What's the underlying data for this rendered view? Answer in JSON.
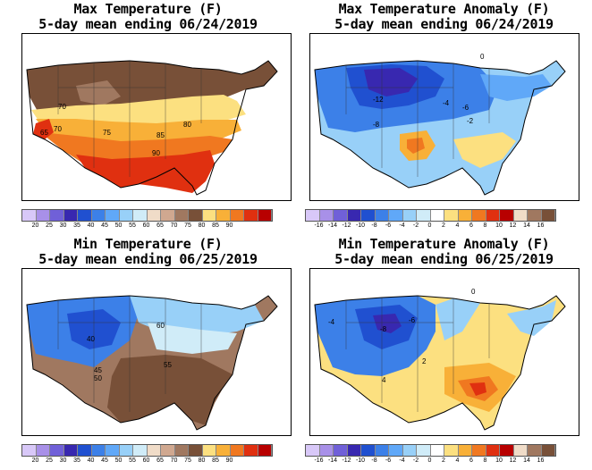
{
  "panels": [
    {
      "id": "max-temp",
      "title_line1": "Max Temperature (F)",
      "title_line2": "5-day mean ending 06/24/2019",
      "colorbar_ticks": [
        "20",
        "25",
        "30",
        "35",
        "40",
        "45",
        "50",
        "55",
        "60",
        "65",
        "70",
        "75",
        "80",
        "85",
        "90"
      ],
      "colorbar_colors": [
        "#d8c8f8",
        "#a890e8",
        "#7060d8",
        "#3828b0",
        "#2050d0",
        "#3c80e8",
        "#60a8f8",
        "#98d0f8",
        "#d0ecf8",
        "#f0dcc8",
        "#d0a890",
        "#a07860",
        "#785038",
        "#fce080",
        "#f8b038",
        "#f07820",
        "#e03010",
        "#b80000"
      ],
      "contour_labels": [
        "70",
        "75",
        "65",
        "70",
        "80",
        "85",
        "90"
      ],
      "colors": {
        "cold": "#785038",
        "mid": "#a07860",
        "warm1": "#fce080",
        "warm2": "#f8b038",
        "hot1": "#f07820",
        "hot2": "#e03010",
        "hot3": "#c81000"
      }
    },
    {
      "id": "max-anom",
      "title_line1": "Max Temperature Anomaly (F)",
      "title_line2": "5-day mean ending 06/24/2019",
      "colorbar_ticks": [
        "-16",
        "-14",
        "-12",
        "-10",
        "-8",
        "-6",
        "-4",
        "-2",
        "0",
        "2",
        "4",
        "6",
        "8",
        "10",
        "12",
        "14",
        "16"
      ],
      "colorbar_colors": [
        "#d8c8f8",
        "#a890e8",
        "#7060d8",
        "#3828b0",
        "#2050d0",
        "#3c80e8",
        "#60a8f8",
        "#98d0f8",
        "#d0ecf8",
        "#ffffff",
        "#fce080",
        "#f8b038",
        "#f07820",
        "#e03010",
        "#b80000",
        "#f0dcc8",
        "#a07860",
        "#785038"
      ],
      "contour_labels": [
        "-12",
        "-8",
        "-4",
        "-6",
        "-2",
        "0"
      ]
    },
    {
      "id": "min-temp",
      "title_line1": "Min Temperature (F)",
      "title_line2": "5-day mean ending 06/25/2019",
      "colorbar_ticks": [
        "20",
        "25",
        "30",
        "35",
        "40",
        "45",
        "50",
        "55",
        "60",
        "65",
        "70",
        "75",
        "80",
        "85",
        "90"
      ],
      "colorbar_colors": [
        "#d8c8f8",
        "#a890e8",
        "#7060d8",
        "#3828b0",
        "#2050d0",
        "#3c80e8",
        "#60a8f8",
        "#98d0f8",
        "#d0ecf8",
        "#f0dcc8",
        "#d0a890",
        "#a07860",
        "#785038",
        "#fce080",
        "#f8b038",
        "#f07820",
        "#e03010",
        "#b80000"
      ],
      "contour_labels": [
        "40",
        "60",
        "45",
        "50",
        "55"
      ]
    },
    {
      "id": "min-anom",
      "title_line1": "Min Temperature Anomaly (F)",
      "title_line2": "5-day mean ending 06/25/2019",
      "colorbar_ticks": [
        "-16",
        "-14",
        "-12",
        "-10",
        "-8",
        "-6",
        "-4",
        "-2",
        "0",
        "2",
        "4",
        "6",
        "8",
        "10",
        "12",
        "14",
        "16"
      ],
      "colorbar_colors": [
        "#d8c8f8",
        "#a890e8",
        "#7060d8",
        "#3828b0",
        "#2050d0",
        "#3c80e8",
        "#60a8f8",
        "#98d0f8",
        "#d0ecf8",
        "#ffffff",
        "#fce080",
        "#f8b038",
        "#f07820",
        "#e03010",
        "#b80000",
        "#f0dcc8",
        "#a07860",
        "#785038"
      ],
      "contour_labels": [
        "-4",
        "-8",
        "-6",
        "0",
        "2",
        "4"
      ]
    }
  ]
}
